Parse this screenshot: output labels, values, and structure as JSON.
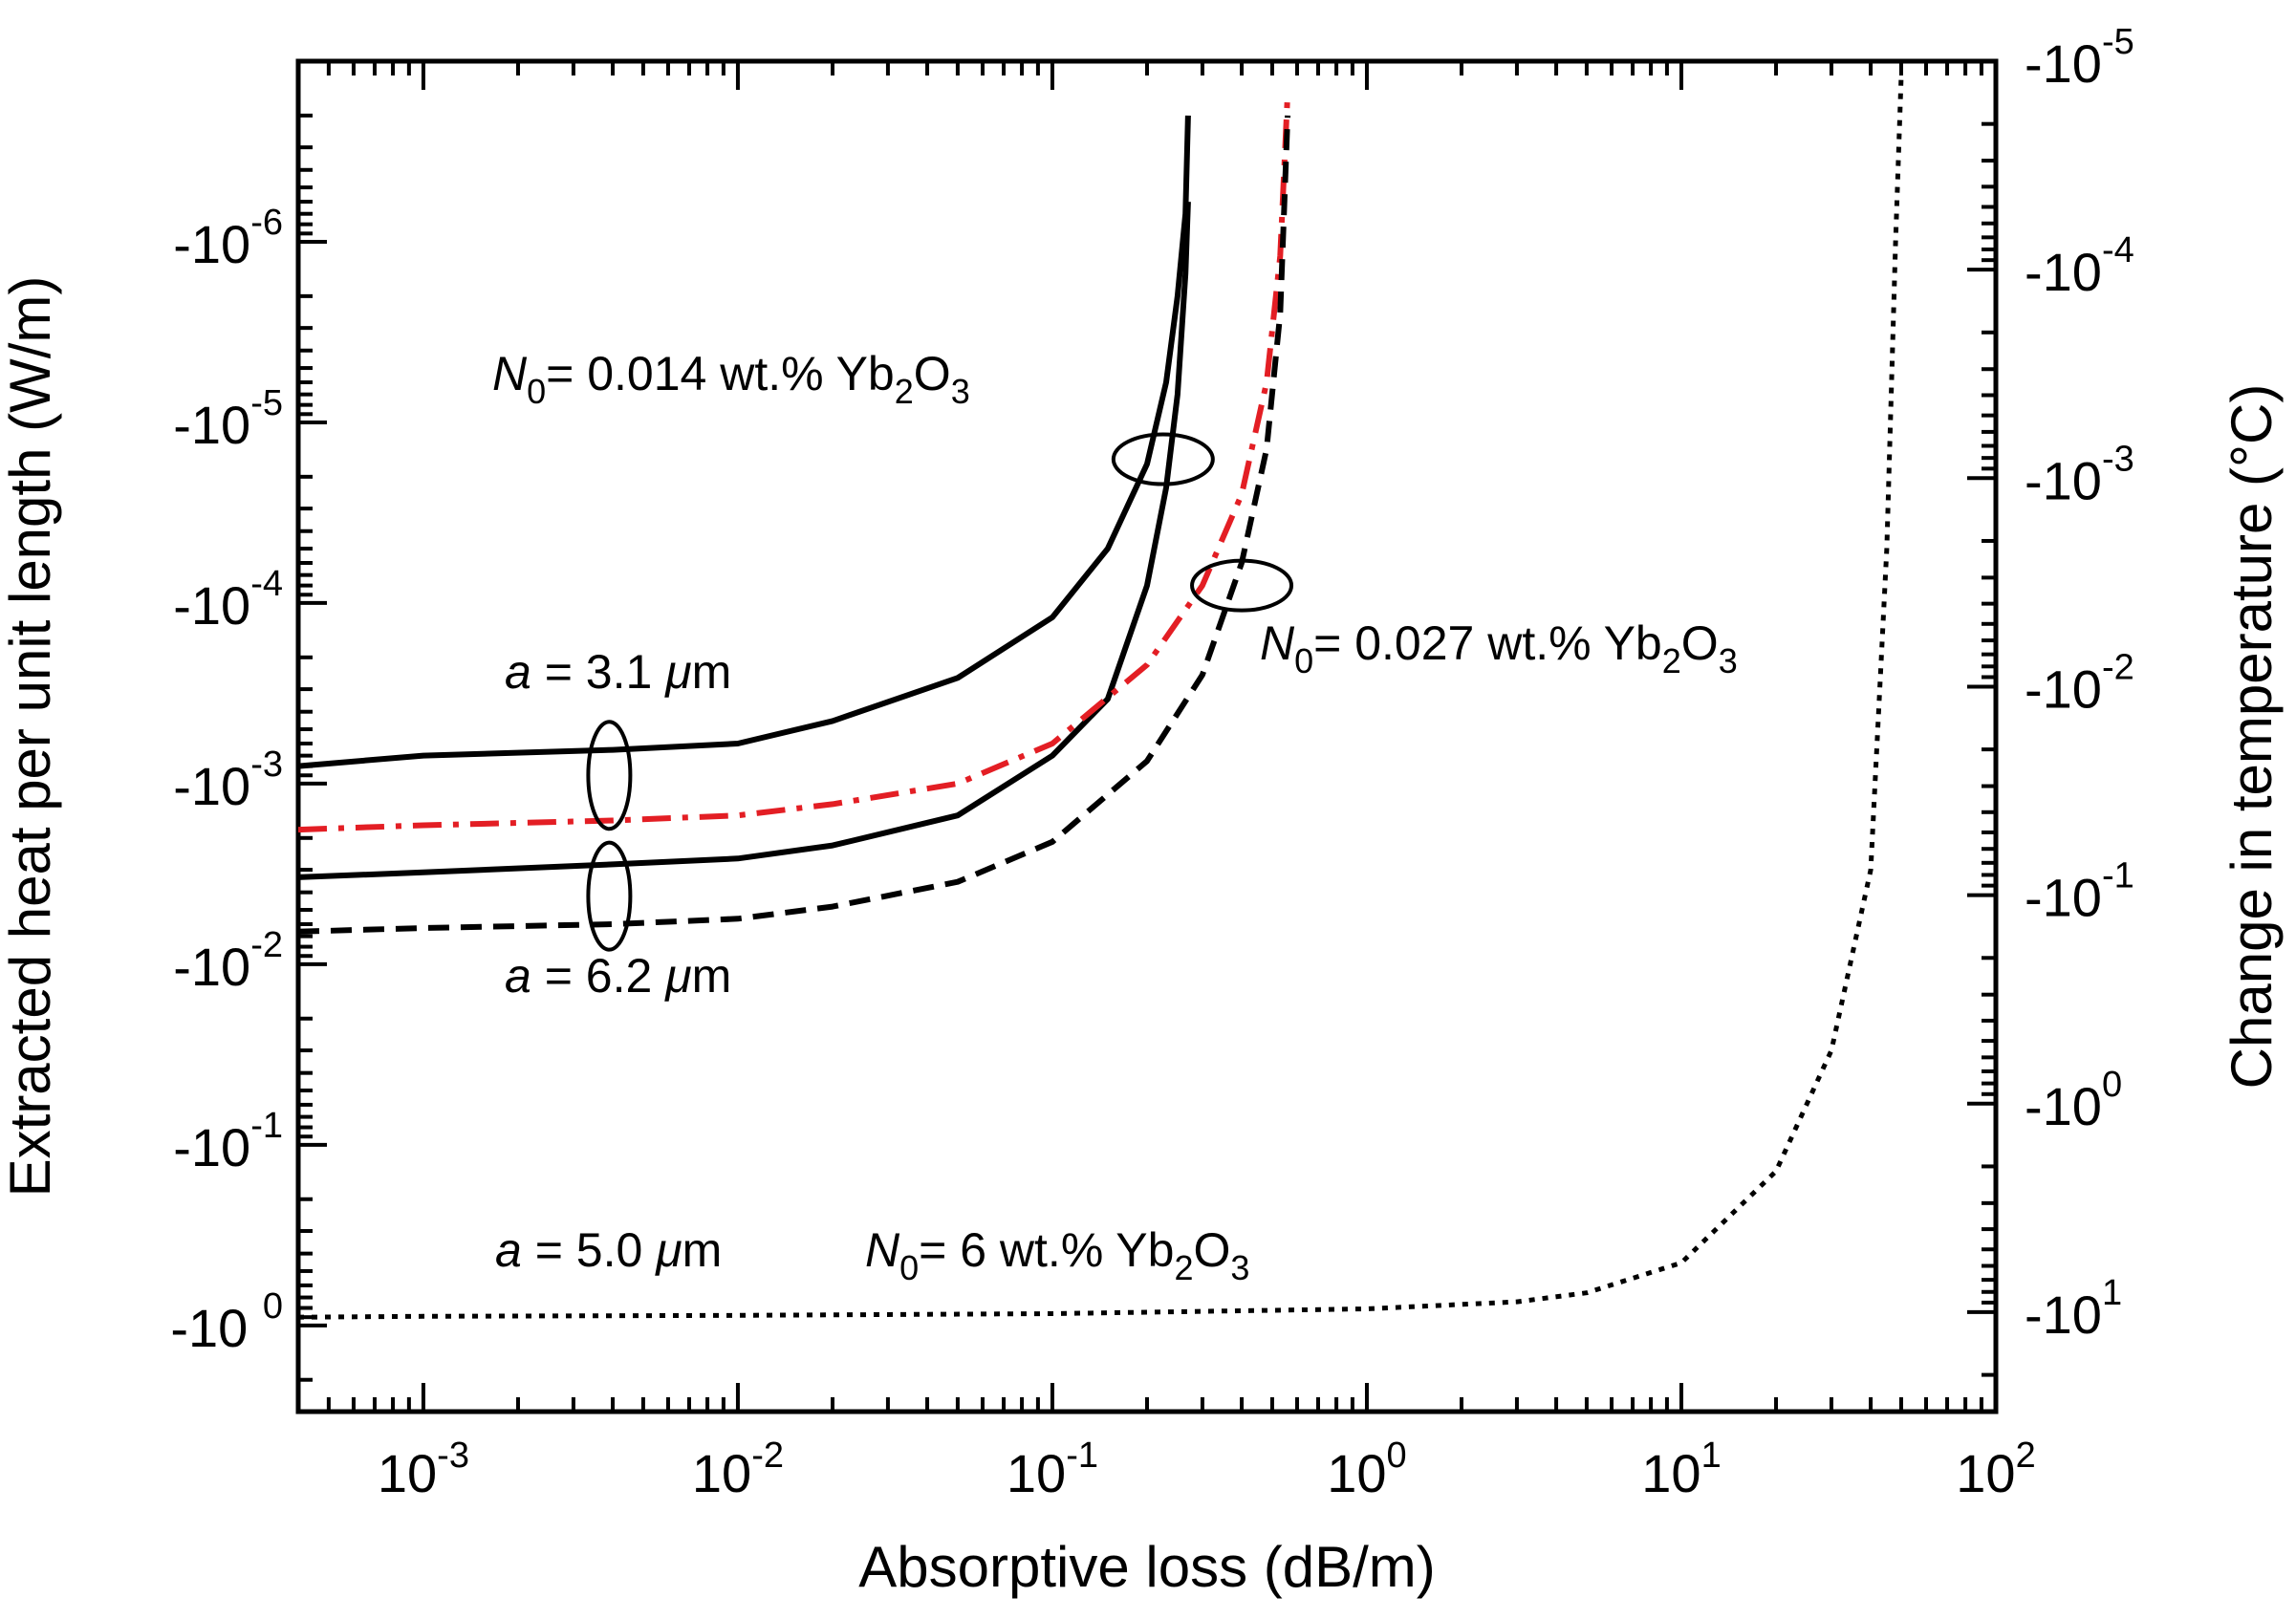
{
  "chart_data": {
    "type": "line",
    "xlabel": "Absorptive loss (dB/m)",
    "ylabel": "Extracted heat per unit length (W/m)",
    "y2label": "Change in temperature (°C)",
    "x_scale": "log",
    "y_scale": "log-negative",
    "xlim": [
      0.0004,
      100
    ],
    "ylim": [
      -1e-07,
      -3.0
    ],
    "y2lim": [
      -1e-05,
      -30
    ],
    "grid": false,
    "x_ticks": [
      {
        "value": 0.001,
        "base": "10",
        "exp": "-3"
      },
      {
        "value": 0.01,
        "base": "10",
        "exp": "-2"
      },
      {
        "value": 0.1,
        "base": "10",
        "exp": "-1"
      },
      {
        "value": 1,
        "base": "10",
        "exp": "0"
      },
      {
        "value": 10,
        "base": "10",
        "exp": "1"
      },
      {
        "value": 100,
        "base": "10",
        "exp": "2"
      }
    ],
    "y_ticks": [
      {
        "value": -1e-06,
        "base": "-10",
        "exp": "-6"
      },
      {
        "value": -1e-05,
        "base": "-10",
        "exp": "-5"
      },
      {
        "value": -0.0001,
        "base": "-10",
        "exp": "-4"
      },
      {
        "value": -0.001,
        "base": "-10",
        "exp": "-3"
      },
      {
        "value": -0.01,
        "base": "-10",
        "exp": "-2"
      },
      {
        "value": -0.1,
        "base": "-10",
        "exp": "-1"
      },
      {
        "value": -1,
        "base": "-10 ",
        "exp": "0"
      }
    ],
    "y2_ticks": [
      {
        "value": -1e-05,
        "base": "-10",
        "exp": "-5"
      },
      {
        "value": -0.0001,
        "base": "-10",
        "exp": "-4"
      },
      {
        "value": -0.001,
        "base": "-10",
        "exp": "-3"
      },
      {
        "value": -0.01,
        "base": "-10",
        "exp": "-2"
      },
      {
        "value": -0.1,
        "base": "-10",
        "exp": "-1"
      },
      {
        "value": -1,
        "base": "-10",
        "exp": "0"
      },
      {
        "value": -10,
        "base": "-10",
        "exp": "1"
      }
    ],
    "series": [
      {
        "style": "solid",
        "color": "#000000",
        "x": [
          0.0004,
          0.001,
          0.004,
          0.01,
          0.02,
          0.05,
          0.1,
          0.15,
          0.2,
          0.23,
          0.25,
          0.265,
          0.27
        ],
        "y": [
          -0.0008,
          -0.0007,
          -0.00065,
          -0.0006,
          -0.00045,
          -0.00026,
          -0.00012,
          -5e-05,
          -1.7e-05,
          -6e-06,
          -2e-06,
          -7e-07,
          -2e-07
        ]
      },
      {
        "style": "solid",
        "color": "#000000",
        "x": [
          0.0004,
          0.001,
          0.004,
          0.01,
          0.02,
          0.05,
          0.1,
          0.15,
          0.2,
          0.23,
          0.25,
          0.265,
          0.27
        ],
        "y": [
          -0.0033,
          -0.0031,
          -0.0028,
          -0.0026,
          -0.0022,
          -0.0015,
          -0.0007,
          -0.00034,
          -8e-05,
          -2.3e-05,
          -7e-06,
          -1.5e-06,
          -6e-07
        ]
      },
      {
        "style": "dash-dot",
        "color": "#e31e24",
        "x": [
          0.0004,
          0.001,
          0.004,
          0.01,
          0.02,
          0.05,
          0.1,
          0.2,
          0.3,
          0.4,
          0.48,
          0.53,
          0.56
        ],
        "y": [
          -0.0018,
          -0.0017,
          -0.0016,
          -0.0015,
          -0.0013,
          -0.001,
          -0.0006,
          -0.00022,
          -8e-05,
          -2.5e-05,
          -6e-06,
          -1.2e-06,
          -1.5e-07
        ]
      },
      {
        "style": "dashed",
        "color": "#000000",
        "x": [
          0.0004,
          0.001,
          0.004,
          0.01,
          0.02,
          0.05,
          0.1,
          0.2,
          0.3,
          0.4,
          0.48,
          0.53,
          0.56
        ],
        "y": [
          -0.0066,
          -0.0063,
          -0.006,
          -0.0056,
          -0.0048,
          -0.0035,
          -0.0021,
          -0.00075,
          -0.00025,
          -6e-05,
          -1.4e-05,
          -2.5e-06,
          -2e-07
        ]
      },
      {
        "style": "dotted",
        "color": "#000000",
        "x": [
          0.0004,
          0.001,
          0.01,
          0.1,
          1,
          3,
          5,
          10,
          20,
          30,
          40,
          45,
          48,
          50
        ],
        "y": [
          -0.9,
          -0.89,
          -0.88,
          -0.86,
          -0.81,
          -0.74,
          -0.66,
          -0.45,
          -0.14,
          -0.03,
          -0.003,
          -5e-05,
          -1e-06,
          -1.2e-07
        ]
      }
    ],
    "annotations": [
      {
        "id": "n0-low",
        "italic": "N",
        "sub0": "0",
        "text": "= 0.014 wt.% Yb",
        "sub2": "2",
        "tail": "O",
        "sub3": "3"
      },
      {
        "id": "n0-mid",
        "italic": "N",
        "sub0": "0",
        "text": "= 0.027 wt.% Yb",
        "sub2": "2",
        "tail": "O",
        "sub3": "3"
      },
      {
        "id": "n0-high",
        "italic": "N",
        "sub0": "0",
        "text": "= 6 wt.% Yb",
        "sub2": "2",
        "tail": "O",
        "sub3": "3"
      },
      {
        "id": "a-31",
        "italic": "a",
        "text": " = 3.1 ",
        "unit_italic": "μ",
        "unit": "m"
      },
      {
        "id": "a-62",
        "italic": "a",
        "text": " = 6.2 ",
        "unit_italic": "μ",
        "unit": "m"
      },
      {
        "id": "a-50",
        "italic": "a",
        "text": " = 5.0 ",
        "unit_italic": "μ",
        "unit": "m"
      }
    ]
  }
}
